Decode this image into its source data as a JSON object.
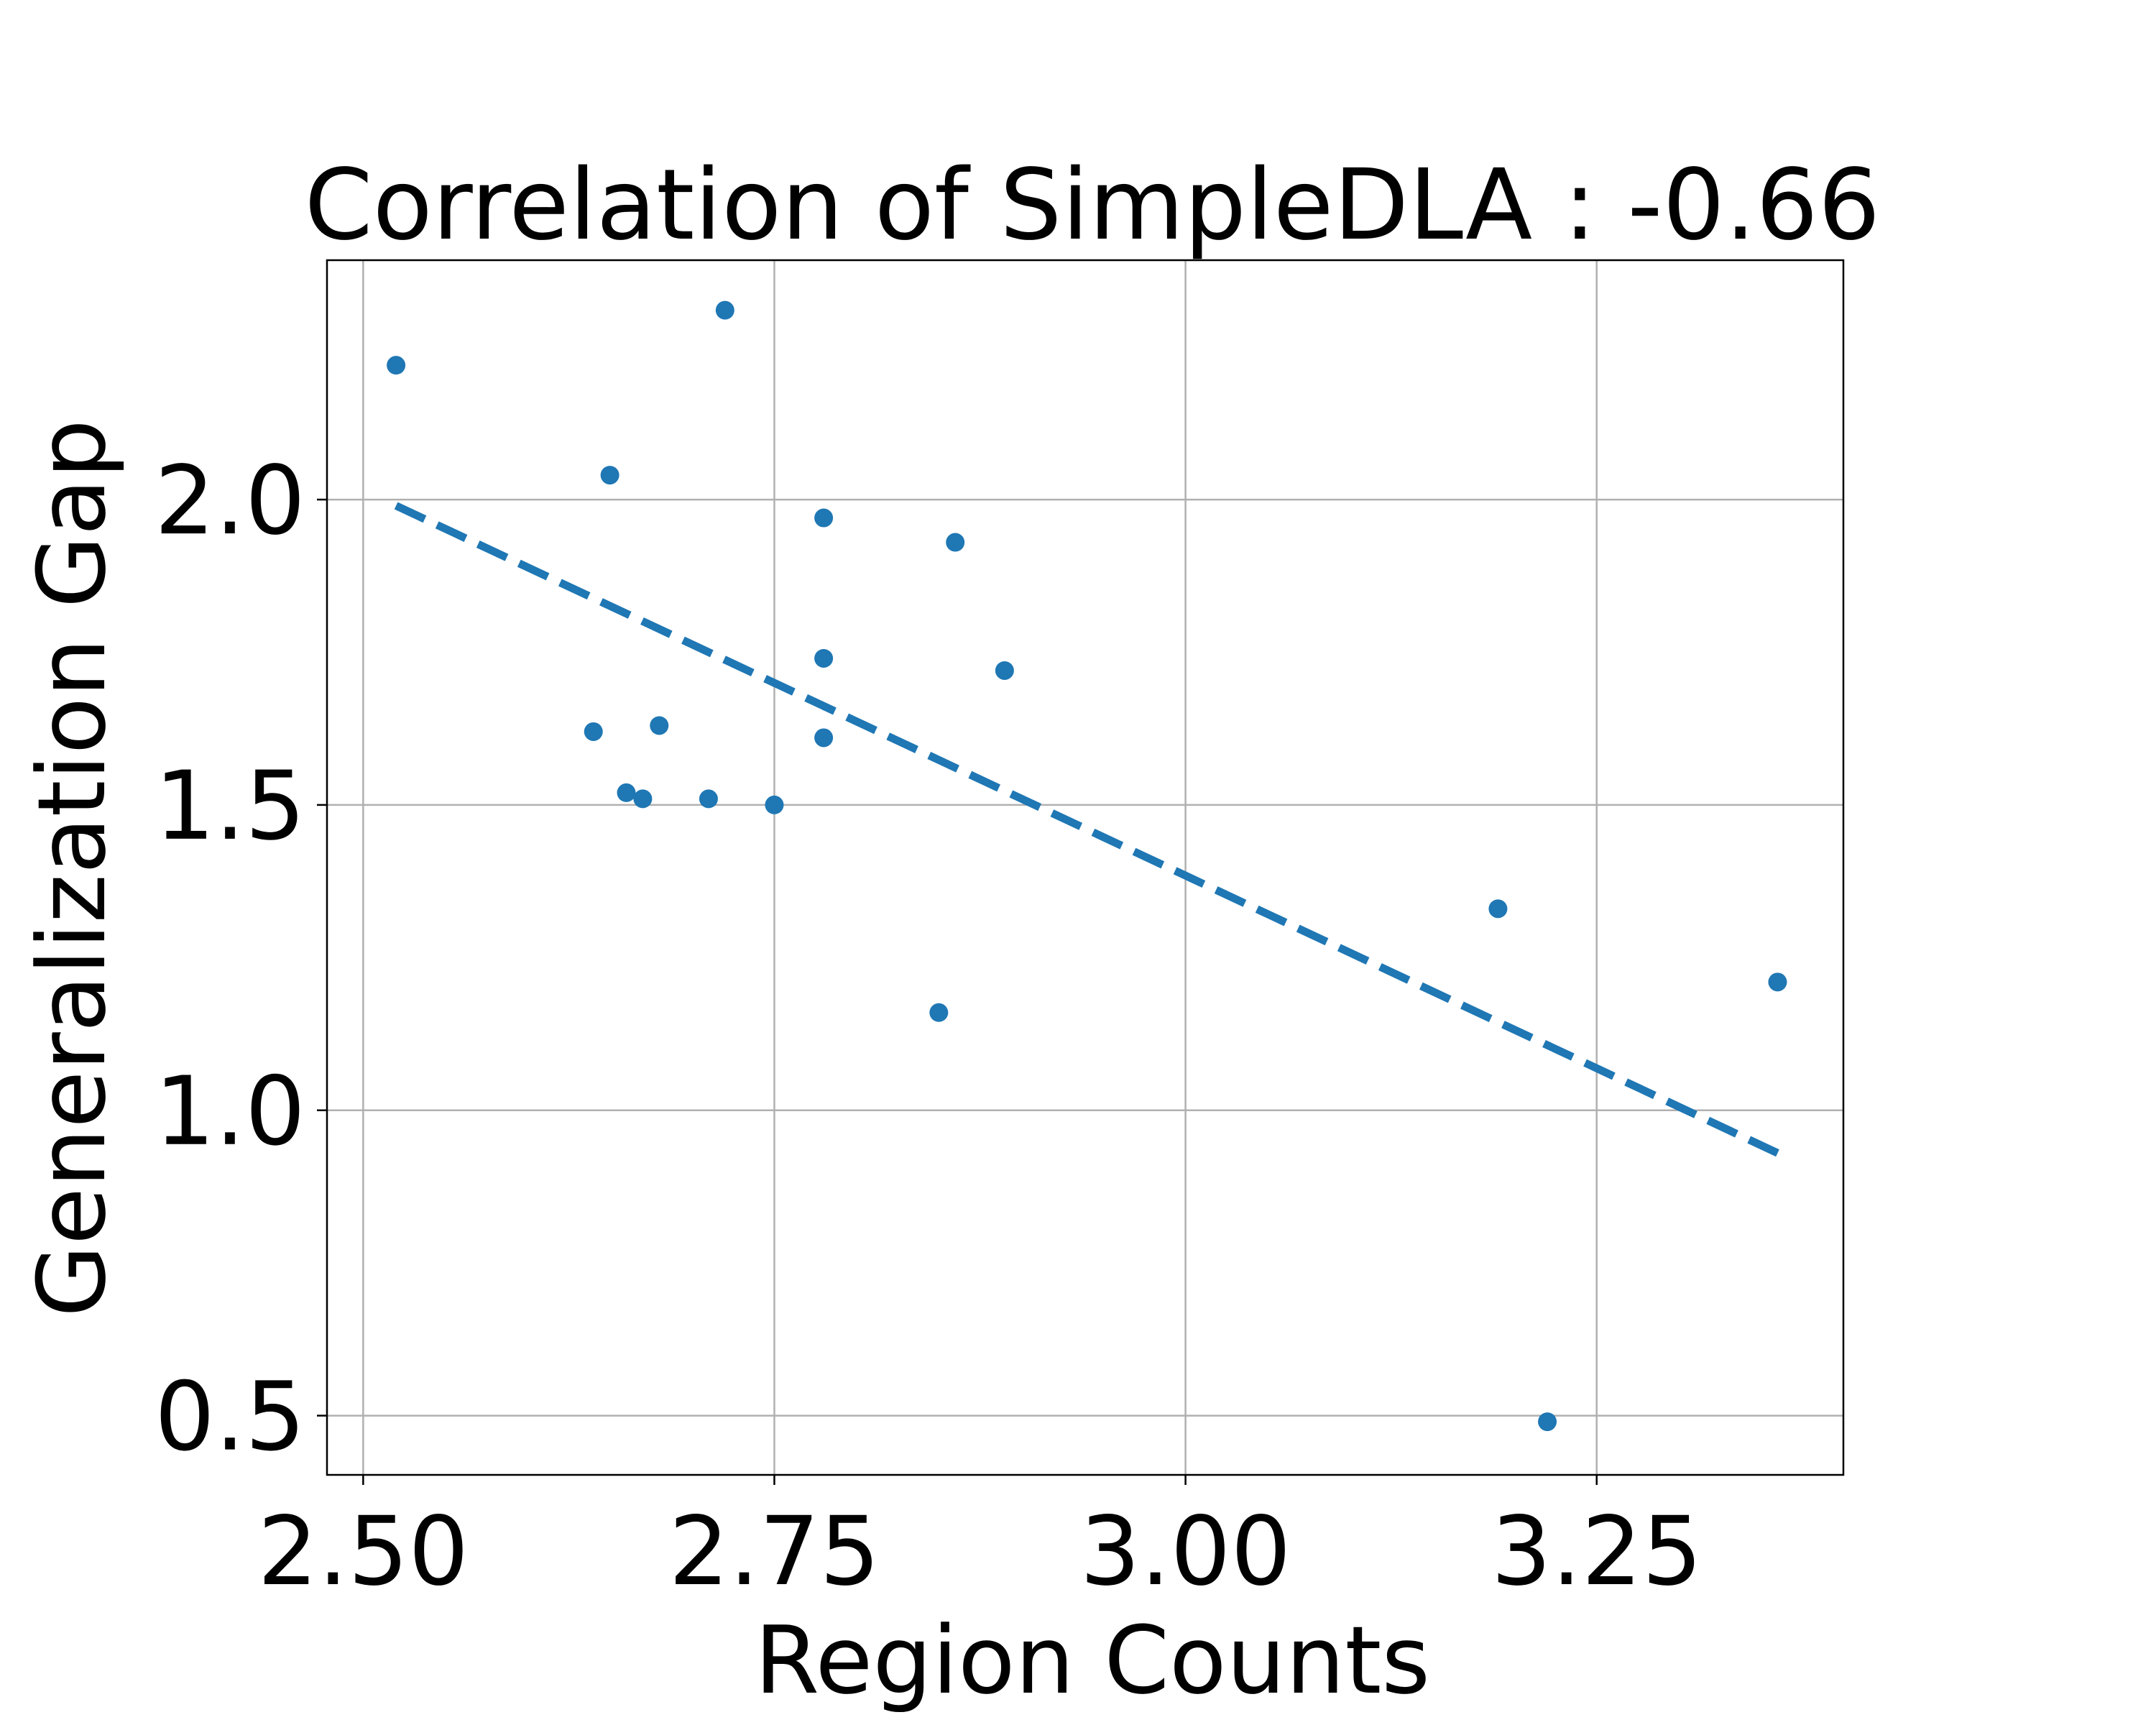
{
  "chart_data": {
    "type": "scatter",
    "title": "Correlation of SimpleDLA : -0.66",
    "xlabel": "Region Counts",
    "ylabel": "Generalization Gap",
    "xlim": [
      2.478,
      3.4
    ],
    "ylim": [
      0.403,
      2.392
    ],
    "xticks": [
      2.5,
      2.75,
      3.0,
      3.25
    ],
    "xtick_labels": [
      "2.50",
      "2.75",
      "3.00",
      "3.25"
    ],
    "yticks": [
      0.5,
      1.0,
      1.5,
      2.0
    ],
    "ytick_labels": [
      "0.5",
      "1.0",
      "1.5",
      "2.0"
    ],
    "grid": true,
    "color": "#1f77b4",
    "points": [
      {
        "x": 2.52,
        "y": 2.22
      },
      {
        "x": 2.72,
        "y": 2.31
      },
      {
        "x": 2.65,
        "y": 2.04
      },
      {
        "x": 2.78,
        "y": 1.97
      },
      {
        "x": 2.86,
        "y": 1.93
      },
      {
        "x": 2.78,
        "y": 1.74
      },
      {
        "x": 2.89,
        "y": 1.72
      },
      {
        "x": 2.64,
        "y": 1.62
      },
      {
        "x": 2.68,
        "y": 1.63
      },
      {
        "x": 2.78,
        "y": 1.61
      },
      {
        "x": 2.66,
        "y": 1.52
      },
      {
        "x": 2.67,
        "y": 1.51
      },
      {
        "x": 2.71,
        "y": 1.51
      },
      {
        "x": 2.75,
        "y": 1.5
      },
      {
        "x": 2.85,
        "y": 1.16
      },
      {
        "x": 3.19,
        "y": 1.33
      },
      {
        "x": 3.36,
        "y": 1.21
      },
      {
        "x": 3.22,
        "y": 0.49
      }
    ],
    "trendline": {
      "style": "dashed",
      "x": [
        2.52,
        3.36
      ],
      "y": [
        1.99,
        0.93
      ]
    }
  }
}
